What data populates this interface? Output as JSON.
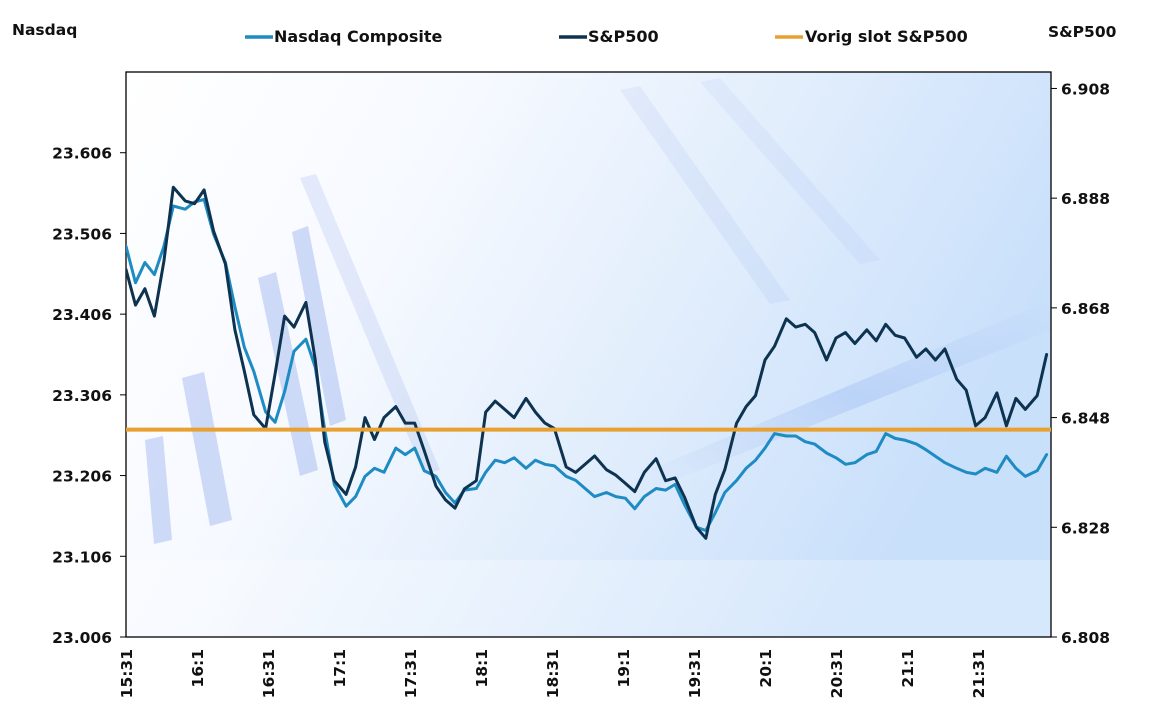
{
  "chart_data": {
    "type": "line",
    "title": "",
    "left_axis": {
      "label": "Nasdaq",
      "ylim": [
        23006,
        23706
      ],
      "ticks": [
        23006,
        23106,
        23206,
        23306,
        23406,
        23506,
        23606
      ],
      "tick_labels": [
        "23.006",
        "23.106",
        "23.206",
        "23.306",
        "23.406",
        "23.506",
        "23.606"
      ]
    },
    "right_axis": {
      "label": "S&P500",
      "ylim": [
        6808,
        6911
      ],
      "ticks": [
        6808,
        6828,
        6848,
        6868,
        6888,
        6908
      ],
      "tick_labels": [
        "6.808",
        "6.828",
        "6.848",
        "6.868",
        "6.888",
        "6.908"
      ]
    },
    "x_axis": {
      "label": "",
      "range_minutes": [
        0,
        390
      ],
      "tick_minutes": [
        0,
        30,
        60,
        90,
        120,
        150,
        180,
        210,
        240,
        270,
        300,
        330,
        360
      ],
      "tick_labels": [
        "15:31",
        "16:1",
        "16:31",
        "17:1",
        "17:31",
        "18:1",
        "18:31",
        "19:1",
        "19:31",
        "20:1",
        "20:31",
        "21:1",
        "21:31"
      ]
    },
    "legend": {
      "placement": "top",
      "entries": [
        {
          "name": "Nasdaq Composite",
          "color": "#1e8bc3"
        },
        {
          "name": "S&P500",
          "color": "#0d3350"
        },
        {
          "name": "Vorig slot S&P500",
          "color": "#e8a030"
        }
      ]
    },
    "x_minutes": [
      0,
      4,
      8,
      12,
      16,
      20,
      25,
      29,
      33,
      37,
      42,
      46,
      50,
      54,
      59,
      63,
      67,
      71,
      76,
      80,
      84,
      88,
      93,
      97,
      101,
      105,
      109,
      114,
      118,
      122,
      126,
      131,
      135,
      139,
      143,
      148,
      152,
      156,
      160,
      164,
      169,
      173,
      177,
      181,
      186,
      190,
      194,
      198,
      203,
      207,
      211,
      215,
      219,
      224,
      228,
      232,
      236,
      241,
      245,
      249,
      253,
      258,
      262,
      266,
      270,
      274,
      279,
      283,
      287,
      291,
      296,
      300,
      304,
      308,
      313,
      317,
      321,
      325,
      329,
      334,
      338,
      342,
      346,
      351,
      355,
      359,
      363,
      368,
      372,
      376,
      380,
      385,
      389
    ],
    "series": [
      {
        "name": "Nasdaq Composite",
        "axis": "left",
        "color": "#1e8bc3",
        "values": [
          23490,
          23445,
          23470,
          23455,
          23490,
          23540,
          23536,
          23545,
          23548,
          23505,
          23470,
          23415,
          23365,
          23335,
          23285,
          23272,
          23310,
          23360,
          23375,
          23340,
          23262,
          23195,
          23168,
          23180,
          23205,
          23215,
          23210,
          23240,
          23232,
          23240,
          23212,
          23205,
          23185,
          23172,
          23188,
          23190,
          23210,
          23225,
          23222,
          23228,
          23215,
          23225,
          23220,
          23218,
          23205,
          23200,
          23190,
          23180,
          23185,
          23180,
          23178,
          23165,
          23180,
          23190,
          23188,
          23195,
          23170,
          23142,
          23138,
          23160,
          23185,
          23200,
          23215,
          23225,
          23240,
          23258,
          23255,
          23255,
          23248,
          23245,
          23234,
          23228,
          23220,
          23222,
          23232,
          23236,
          23258,
          23252,
          23250,
          23245,
          23238,
          23230,
          23222,
          23215,
          23210,
          23208,
          23215,
          23210,
          23230,
          23215,
          23205,
          23212,
          23232
        ]
      },
      {
        "name": "S&P500",
        "axis": "right",
        "color": "#0d3350",
        "values": [
          6875.0,
          6868.5,
          6871.5,
          6866.5,
          6876.5,
          6890.0,
          6887.5,
          6887.0,
          6889.5,
          6882.0,
          6876.0,
          6864.0,
          6856.5,
          6848.5,
          6846.0,
          6856.0,
          6866.5,
          6864.5,
          6869.0,
          6858.5,
          6843.5,
          6836.5,
          6834.0,
          6839.0,
          6848.0,
          6844.0,
          6848.0,
          6850.0,
          6847.0,
          6847.0,
          6842.0,
          6835.5,
          6833.0,
          6831.5,
          6835.0,
          6836.5,
          6849.0,
          6851.0,
          6849.5,
          6848.0,
          6851.5,
          6849.0,
          6847.0,
          6846.0,
          6839.0,
          6838.0,
          6839.5,
          6841.0,
          6838.5,
          6837.5,
          6836.0,
          6834.5,
          6838.0,
          6840.5,
          6836.5,
          6837.0,
          6833.5,
          6828.0,
          6826.0,
          6834.0,
          6838.5,
          6847.0,
          6850.0,
          6852.0,
          6858.5,
          6861.0,
          6866.0,
          6864.5,
          6865.0,
          6863.5,
          6858.5,
          6862.5,
          6863.5,
          6861.5,
          6864.0,
          6862.0,
          6865.0,
          6863.0,
          6862.5,
          6859.0,
          6860.5,
          6858.5,
          6860.5,
          6855.0,
          6853.0,
          6846.5,
          6848.0,
          6852.5,
          6846.5,
          6851.5,
          6849.5,
          6852.0,
          6859.5
        ]
      },
      {
        "name": "Vorig slot S&P500",
        "axis": "right",
        "color": "#e8a030",
        "constant": 6845.8
      }
    ],
    "grid": false
  }
}
